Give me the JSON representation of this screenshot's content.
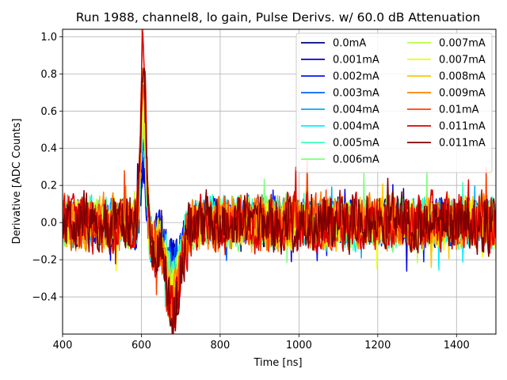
{
  "chart_data": {
    "type": "line",
    "title": "Run 1988, channel8, lo gain, Pulse Derivs. w/ 60.0 dB Attenuation",
    "xlabel": "Time [ns]",
    "ylabel": "Derivative [ADC Counts]",
    "xlim": [
      400,
      1500
    ],
    "ylim": [
      -0.6,
      1.04
    ],
    "xticks": [
      "400",
      "600",
      "800",
      "1000",
      "1200",
      "1400"
    ],
    "yticks": [
      "−0.4",
      "−0.2",
      "0.0",
      "0.2",
      "0.4",
      "0.6",
      "0.8",
      "1.0"
    ],
    "grid": true,
    "legend_position": "top-right",
    "pulse": {
      "center_ns": 600,
      "peak_ns": 605,
      "trough_ns": 680,
      "noise_band": [
        -0.35,
        0.3
      ]
    },
    "series": [
      {
        "name": "0.0mA",
        "color": "#00007f",
        "peak": 0.3,
        "trough": -0.18,
        "noise": 0.1
      },
      {
        "name": "0.001mA",
        "color": "#0000db",
        "peak": 0.36,
        "trough": -0.2,
        "noise": 0.1
      },
      {
        "name": "0.002mA",
        "color": "#0014ff",
        "peak": 0.4,
        "trough": -0.22,
        "noise": 0.1
      },
      {
        "name": "0.003mA",
        "color": "#0060ff",
        "peak": 0.45,
        "trough": -0.24,
        "noise": 0.1
      },
      {
        "name": "0.004mA",
        "color": "#00a8ff",
        "peak": 0.5,
        "trough": -0.26,
        "noise": 0.1
      },
      {
        "name": "0.004mA",
        "color": "#00f0ff",
        "peak": 0.52,
        "trough": -0.28,
        "noise": 0.11
      },
      {
        "name": "0.005mA",
        "color": "#3dffb9",
        "peak": 0.55,
        "trough": -0.3,
        "noise": 0.11
      },
      {
        "name": "0.006mA",
        "color": "#7dff7a",
        "peak": 0.58,
        "trough": -0.32,
        "noise": 0.11
      },
      {
        "name": "0.007mA",
        "color": "#b9ff3d",
        "peak": 0.62,
        "trough": -0.34,
        "noise": 0.11
      },
      {
        "name": "0.007mA",
        "color": "#f0ff00",
        "peak": 0.65,
        "trough": -0.36,
        "noise": 0.11
      },
      {
        "name": "0.008mA",
        "color": "#ffc400",
        "peak": 0.7,
        "trough": -0.38,
        "noise": 0.11
      },
      {
        "name": "0.009mA",
        "color": "#ff8200",
        "peak": 0.78,
        "trough": -0.42,
        "noise": 0.12
      },
      {
        "name": "0.01mA",
        "color": "#ff4100",
        "peak": 0.85,
        "trough": -0.45,
        "noise": 0.12
      },
      {
        "name": "0.011mA",
        "color": "#db0000",
        "peak": 0.96,
        "trough": -0.5,
        "noise": 0.13
      },
      {
        "name": "0.011mA",
        "color": "#7f0000",
        "peak": 0.8,
        "trough": -0.48,
        "noise": 0.13
      }
    ]
  }
}
